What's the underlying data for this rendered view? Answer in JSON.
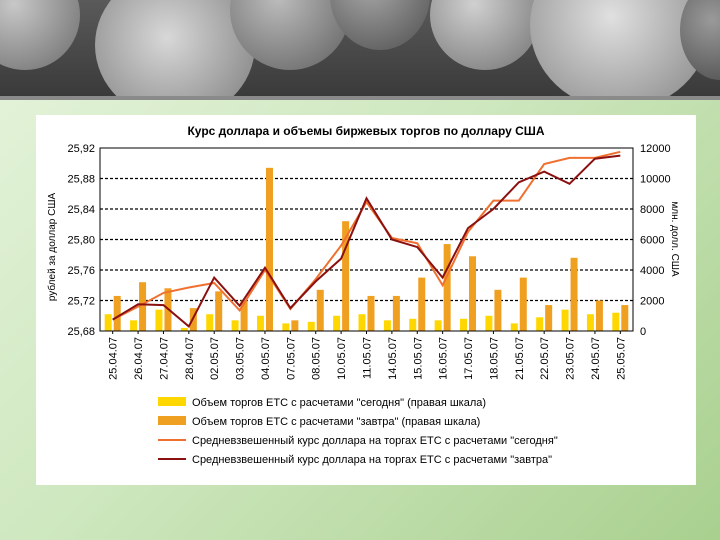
{
  "chart_data": {
    "type": "bar+line",
    "title": "Курс доллара и объемы биржевых торгов по доллару США",
    "ylabel_left": "рублей за доллар США",
    "ylabel_right": "млн. долл. США",
    "ylim_left": [
      25.68,
      25.92
    ],
    "ylim_right": [
      0,
      12000
    ],
    "yticks_left": [
      "25,92",
      "25,88",
      "25,84",
      "25,80",
      "25,76",
      "25,72",
      "25,68"
    ],
    "yticks_right": [
      "12000",
      "10000",
      "8000",
      "6000",
      "4000",
      "2000",
      "0"
    ],
    "categories": [
      "25.04.07",
      "26.04.07",
      "27.04.07",
      "28.04.07",
      "02.05.07",
      "03.05.07",
      "04.05.07",
      "07.05.07",
      "08.05.07",
      "10.05.07",
      "11.05.07",
      "14.05.07",
      "15.05.07",
      "16.05.07",
      "17.05.07",
      "18.05.07",
      "21.05.07",
      "22.05.07",
      "23.05.07",
      "24.05.07",
      "25.05.07"
    ],
    "series": [
      {
        "name": "Объем торгов ЕТС с расчетами \"сегодня\" (правая шкала)",
        "kind": "bar",
        "color": "#ffd700",
        "values": [
          1100,
          700,
          1400,
          200,
          1100,
          700,
          1000,
          500,
          600,
          1000,
          1100,
          700,
          800,
          700,
          800,
          1000,
          500,
          900,
          1400,
          1100,
          1200
        ]
      },
      {
        "name": "Объем торгов ЕТС с расчетами \"завтра\" (правая шкала)",
        "kind": "bar",
        "color": "#f0a020",
        "values": [
          2300,
          3200,
          2800,
          1500,
          2600,
          2000,
          10700,
          700,
          2700,
          7200,
          2300,
          2300,
          3500,
          5700,
          4900,
          2700,
          3500,
          1700,
          4800,
          2000,
          1700
        ]
      },
      {
        "name": "Средневзвешенный курс доллара на торгах ЕТС с расчетами \"сегодня\"",
        "kind": "line",
        "color": "#f07030",
        "values": [
          25.695,
          25.712,
          25.73,
          25.737,
          25.743,
          25.707,
          25.76,
          25.709,
          25.748,
          25.792,
          25.849,
          25.802,
          25.795,
          25.74,
          25.81,
          25.851,
          25.851,
          25.899,
          25.907,
          25.907,
          25.915
        ]
      },
      {
        "name": "Средневзвешенный курс доллара на торгах ЕТС с расчетами \"завтра\"",
        "kind": "line",
        "color": "#8b1010",
        "values": [
          25.695,
          25.715,
          25.714,
          25.686,
          25.75,
          25.713,
          25.763,
          25.71,
          25.745,
          25.775,
          25.854,
          25.8,
          25.79,
          25.75,
          25.815,
          25.84,
          25.875,
          25.889,
          25.873,
          25.906,
          25.91
        ]
      }
    ]
  }
}
